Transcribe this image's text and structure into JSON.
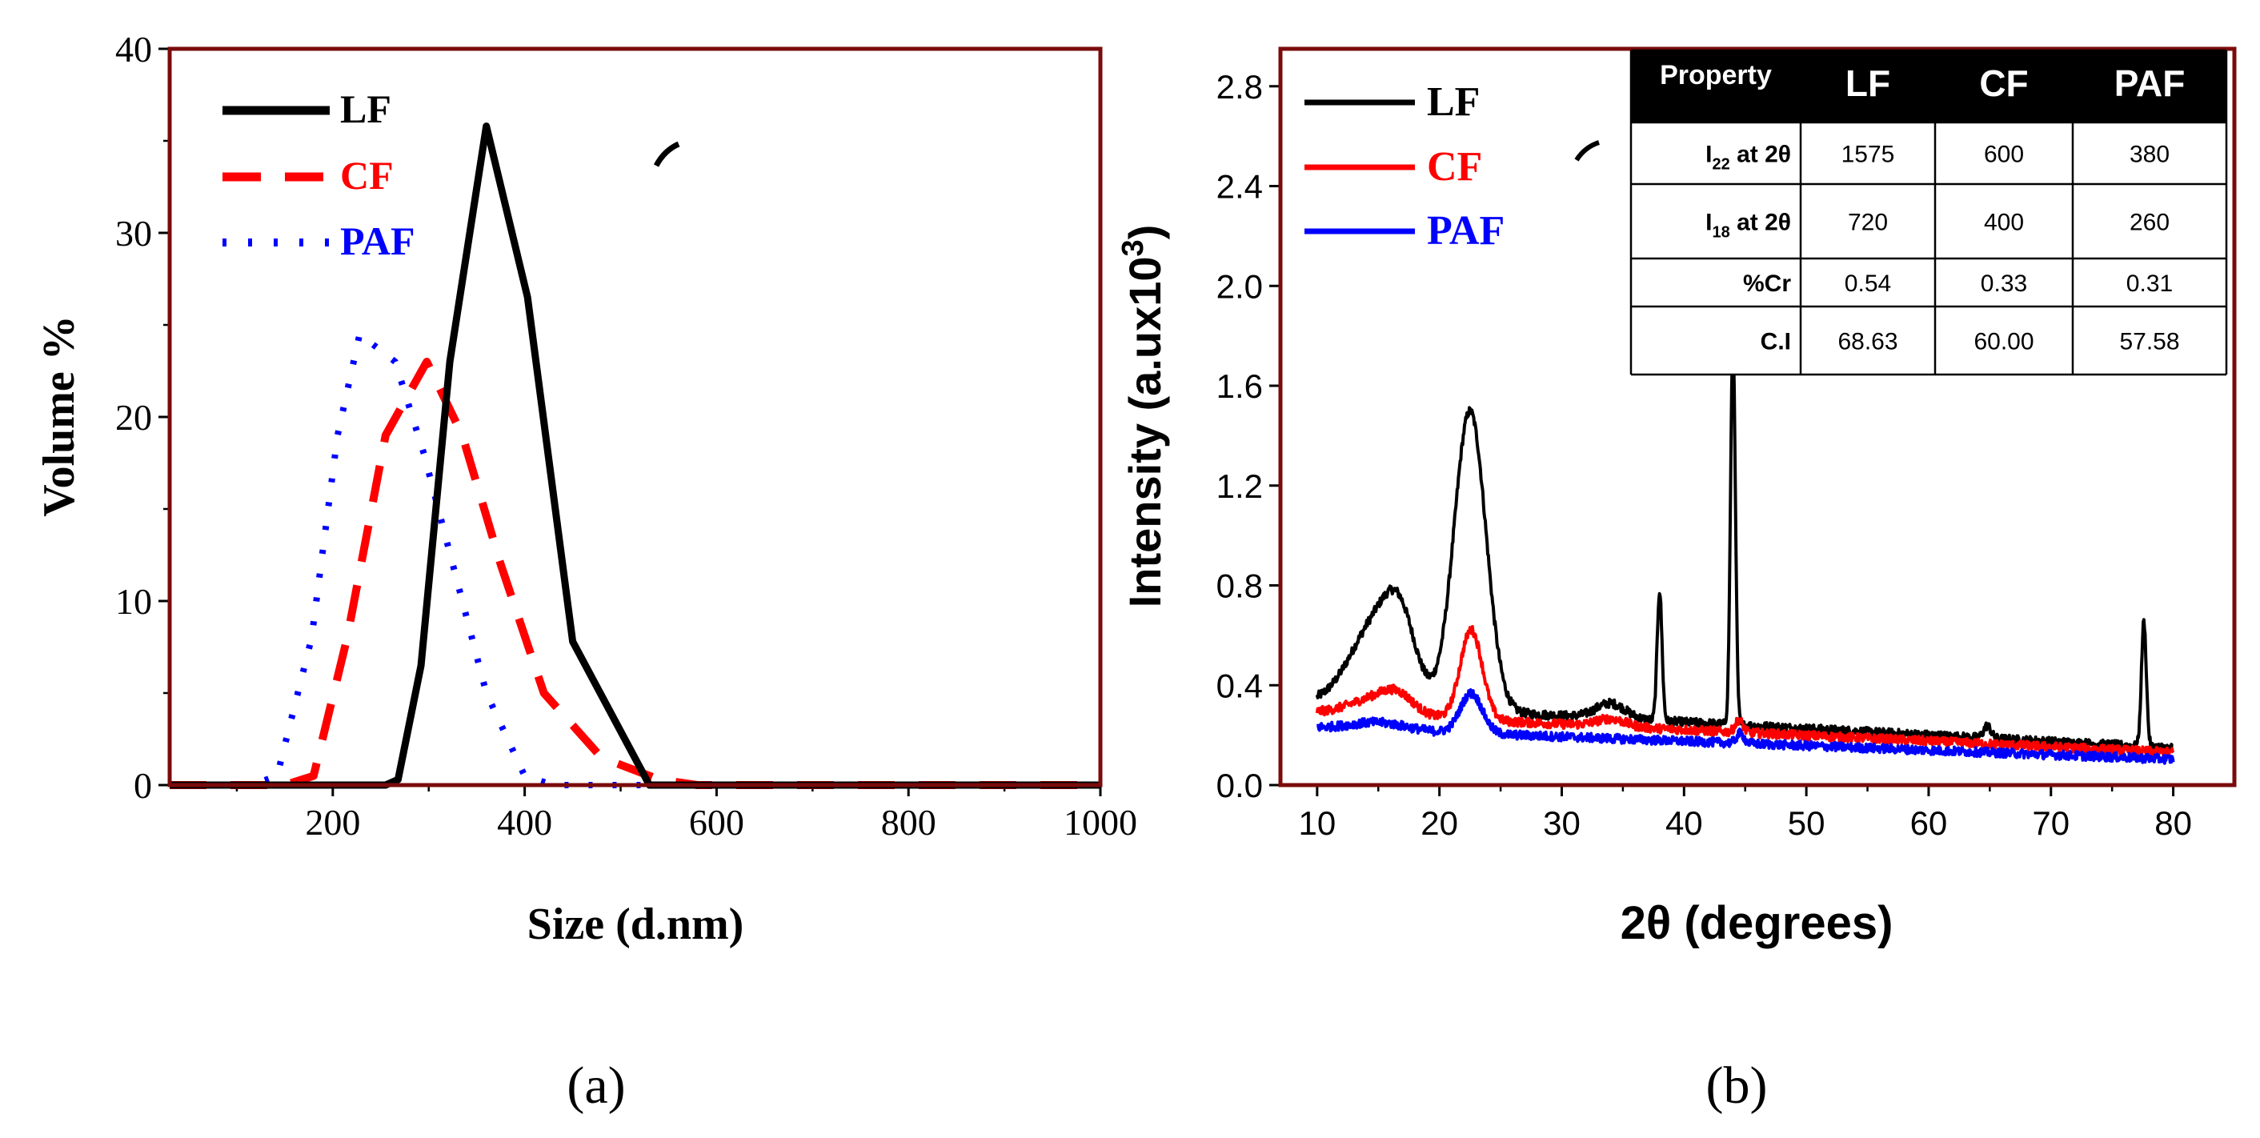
{
  "chart_data": [
    {
      "panel": "a",
      "type": "line",
      "panel_label": "(a)",
      "title": "",
      "xlabel": "Size (d.nm)",
      "ylabel": "Volume %",
      "xlim": [
        30,
        1000
      ],
      "ylim": [
        0,
        40
      ],
      "xticks": [
        200,
        400,
        600,
        800,
        1000
      ],
      "yticks": [
        0,
        10,
        20,
        30,
        40
      ],
      "legend_position": "top-left",
      "series": [
        {
          "name": "LF",
          "color": "#000000",
          "style": "solid",
          "x": [
            30,
            255,
            268,
            292,
            322,
            360,
            403,
            450,
            530,
            610,
            1000
          ],
          "y": [
            0,
            0,
            0.3,
            6.5,
            23,
            35.8,
            26.5,
            7.8,
            0,
            0,
            0
          ]
        },
        {
          "name": "CF",
          "color": "#ff0000",
          "style": "dashed",
          "x": [
            30,
            150,
            180,
            215,
            255,
            298,
            335,
            375,
            420,
            480,
            540,
            580,
            1000
          ],
          "y": [
            0,
            0,
            0.5,
            8,
            19,
            23,
            19,
            12,
            5,
            1.5,
            0.3,
            0,
            0
          ]
        },
        {
          "name": "PAF",
          "color": "#0000ff",
          "style": "dotted",
          "x": [
            30,
            115,
            142,
            178,
            205,
            228,
            265,
            295,
            325,
            360,
            400,
            430,
            1000
          ],
          "y": [
            0,
            0,
            0.5,
            8,
            19,
            24.5,
            23,
            18,
            12,
            5,
            0.5,
            0,
            0
          ]
        }
      ]
    },
    {
      "panel": "b",
      "type": "line",
      "panel_label": "(b)",
      "title": "",
      "xlabel": "2θ (degrees)",
      "ylabel": "Intensity (a.ux10",
      "ylabel_sup": "3",
      "ylabel_end": ")",
      "xlim": [
        7,
        85
      ],
      "ylim": [
        0,
        2.95
      ],
      "xticks": [
        10,
        20,
        30,
        40,
        50,
        60,
        70,
        80
      ],
      "yticks": [
        "0.0",
        "0.4",
        "0.8",
        "1.2",
        "1.6",
        "2.0",
        "2.4",
        "2.8"
      ],
      "legend_position": "top-left",
      "series": [
        {
          "name": "LF",
          "color": "#000000",
          "base": 0.33,
          "peaks": [
            [
              15,
              0.34,
              2.2
            ],
            [
              16.8,
              0.2,
              1.2
            ],
            [
              22.5,
              1.2,
              1.3
            ],
            [
              34,
              0.06,
              1.2
            ],
            [
              38,
              0.52,
              0.2
            ],
            [
              44,
              1.53,
              0.2
            ],
            [
              64.8,
              0.05,
              0.3
            ],
            [
              77.6,
              0.5,
              0.2
            ]
          ]
        },
        {
          "name": "CF",
          "color": "#ff0000",
          "base": 0.29,
          "peaks": [
            [
              15,
              0.07,
              2.2
            ],
            [
              16.6,
              0.05,
              1.2
            ],
            [
              22.6,
              0.36,
              0.9
            ],
            [
              34,
              0.03,
              1.2
            ],
            [
              44.5,
              0.05,
              0.3
            ]
          ]
        },
        {
          "name": "PAF",
          "color": "#0000ff",
          "base": 0.23,
          "peaks": [
            [
              15,
              0.03,
              2.2
            ],
            [
              22.6,
              0.16,
              0.9
            ],
            [
              44.6,
              0.04,
              0.3
            ]
          ]
        }
      ],
      "inset_table": {
        "headers": [
          "Property",
          "LF",
          "CF",
          "PAF"
        ],
        "rows": [
          {
            "label": "I",
            "label_sub": "22",
            "label_end": " at 2θ",
            "values": [
              "1575",
              "600",
              "380"
            ]
          },
          {
            "label": "I",
            "label_sub": "18",
            "label_end": " at 2θ",
            "values": [
              "720",
              "400",
              "260"
            ]
          },
          {
            "label": "%Cr",
            "label_sub": "",
            "label_end": "",
            "values": [
              "0.54",
              "0.33",
              "0.31"
            ]
          },
          {
            "label": "C.I",
            "label_sub": "",
            "label_end": "",
            "values": [
              "68.63",
              "60.00",
              "57.58"
            ]
          }
        ]
      }
    }
  ],
  "colors": {
    "frame": "#7b0b0b",
    "lf": "#000000",
    "cf": "#ff0000",
    "paf": "#0000ff"
  }
}
